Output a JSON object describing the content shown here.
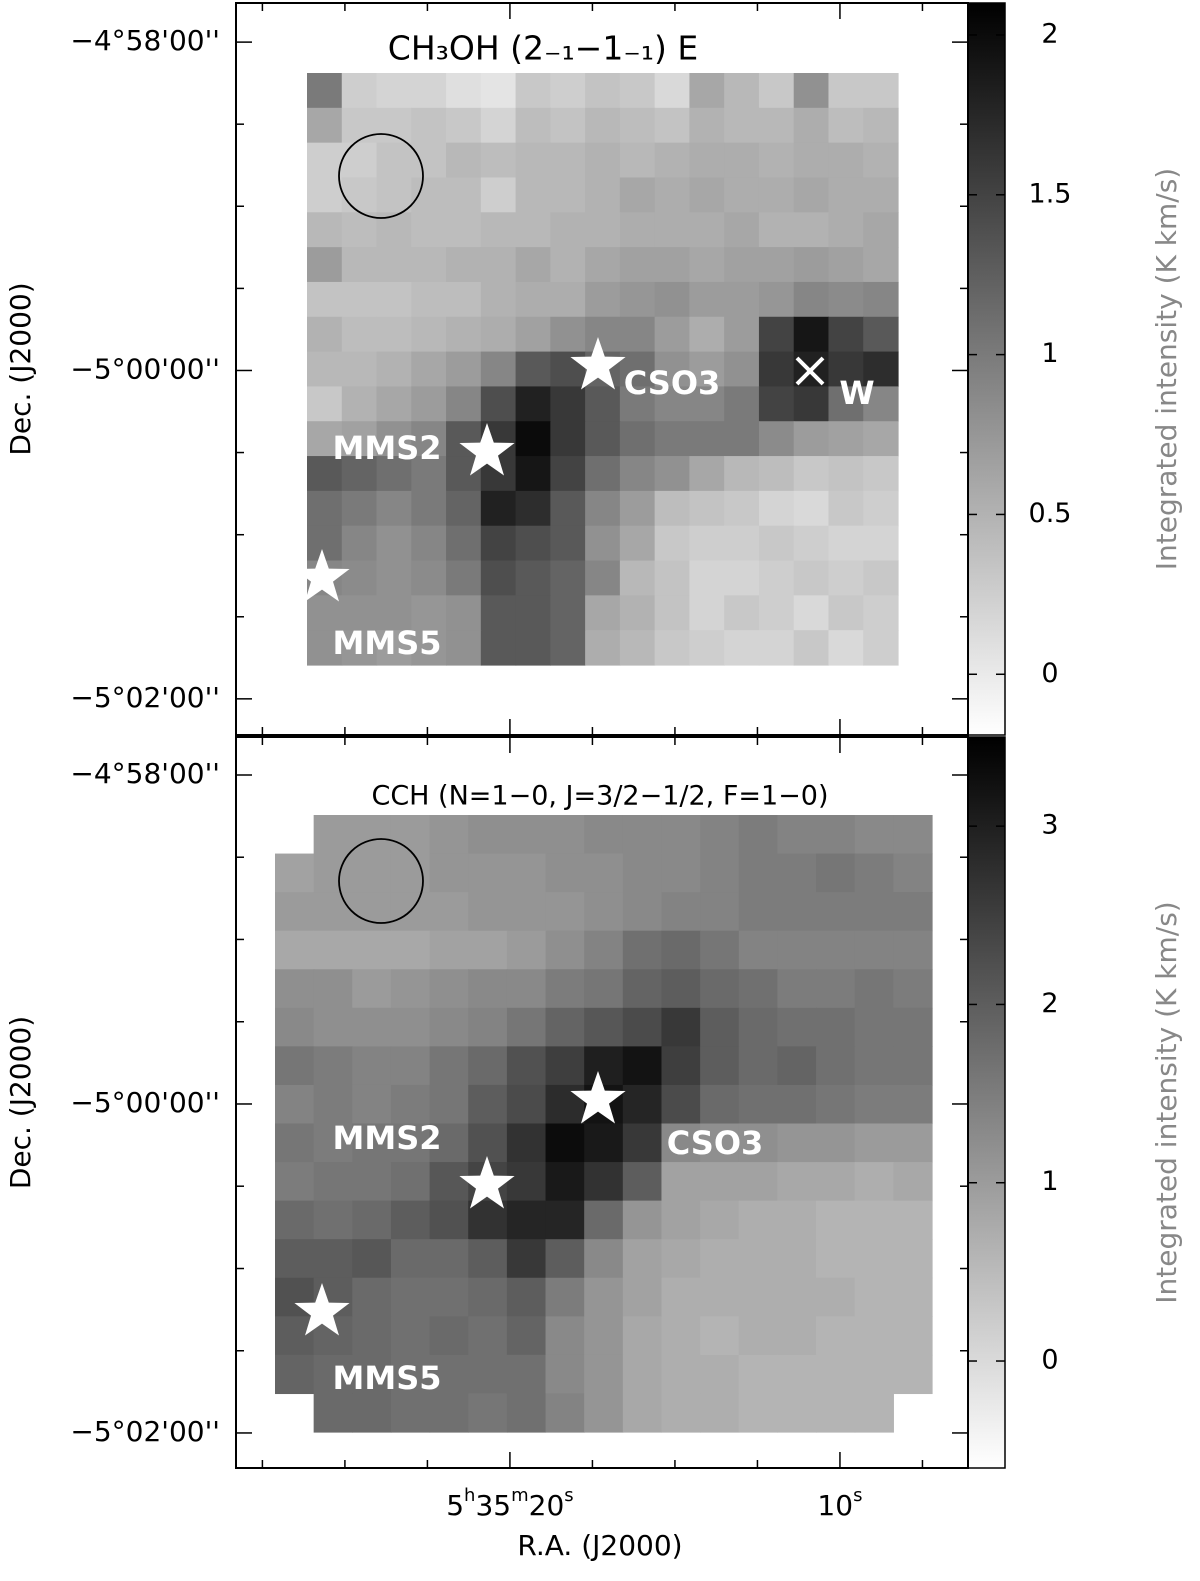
{
  "chart_data": [
    {
      "type": "heatmap",
      "title": "CH₃OH (2₋₁−1₋₁) E",
      "ylabel": "Dec. (J2000)",
      "colorbar_label": "Integrated intensity (K km/s)",
      "colormap": "gray_r",
      "clim": [
        -0.19,
        2.1
      ],
      "cticks": [
        0,
        0.5,
        1,
        1.5,
        2
      ],
      "ylim": [
        -4.9627,
        -5.037
      ],
      "yticks": [
        {
          "value": -4.96667,
          "label": "−4°58'00''"
        },
        {
          "value": -5.0,
          "label": "−5°00'00''"
        },
        {
          "value": -5.03333,
          "label": "−5°02'00''"
        }
      ],
      "yminor": [
        -4.975,
        -4.98333,
        -4.99167,
        -5.00833,
        -5.01667,
        -5.025
      ],
      "annotations": [
        "CSO3",
        "MMS2",
        "MMS5",
        "W"
      ],
      "values": [
        [
          1.0,
          0.25,
          0.2,
          0.2,
          0.1,
          0.05,
          0.3,
          0.25,
          0.35,
          0.3,
          0.15,
          0.6,
          0.45,
          0.3,
          0.8,
          0.3,
          0.3
        ],
        [
          0.6,
          0.3,
          0.3,
          0.35,
          0.3,
          0.2,
          0.4,
          0.35,
          0.45,
          0.4,
          0.35,
          0.5,
          0.45,
          0.45,
          0.55,
          0.4,
          0.45
        ],
        [
          0.25,
          0.25,
          0.35,
          0.35,
          0.45,
          0.4,
          0.45,
          0.45,
          0.5,
          0.45,
          0.5,
          0.55,
          0.55,
          0.5,
          0.55,
          0.55,
          0.5
        ],
        [
          0.25,
          0.3,
          0.35,
          0.4,
          0.4,
          0.25,
          0.45,
          0.45,
          0.5,
          0.6,
          0.55,
          0.6,
          0.55,
          0.55,
          0.6,
          0.55,
          0.55
        ],
        [
          0.45,
          0.4,
          0.45,
          0.4,
          0.4,
          0.45,
          0.45,
          0.5,
          0.5,
          0.55,
          0.55,
          0.55,
          0.6,
          0.5,
          0.5,
          0.55,
          0.6
        ],
        [
          0.7,
          0.45,
          0.45,
          0.45,
          0.5,
          0.5,
          0.6,
          0.5,
          0.6,
          0.65,
          0.65,
          0.6,
          0.65,
          0.65,
          0.7,
          0.65,
          0.6
        ],
        [
          0.35,
          0.35,
          0.35,
          0.4,
          0.4,
          0.5,
          0.55,
          0.55,
          0.7,
          0.75,
          0.8,
          0.7,
          0.7,
          0.75,
          0.9,
          0.85,
          0.9
        ],
        [
          0.5,
          0.4,
          0.4,
          0.45,
          0.5,
          0.55,
          0.65,
          0.8,
          0.9,
          0.9,
          0.7,
          0.55,
          0.7,
          1.5,
          1.9,
          1.5,
          1.3
        ],
        [
          0.45,
          0.45,
          0.5,
          0.6,
          0.7,
          0.9,
          1.3,
          1.4,
          1.2,
          1.1,
          0.8,
          0.7,
          0.8,
          1.6,
          1.8,
          1.6,
          1.7
        ],
        [
          0.3,
          0.5,
          0.6,
          0.7,
          0.9,
          1.4,
          1.8,
          1.6,
          1.3,
          1.0,
          0.9,
          0.9,
          1.0,
          1.5,
          1.6,
          1.1,
          0.9
        ],
        [
          0.6,
          0.65,
          0.8,
          0.9,
          1.3,
          1.6,
          2.0,
          1.6,
          1.3,
          1.1,
          1.0,
          1.0,
          1.0,
          0.85,
          0.7,
          0.65,
          0.6
        ],
        [
          1.3,
          1.2,
          1.1,
          1.0,
          1.3,
          1.6,
          1.9,
          1.5,
          1.1,
          0.9,
          0.8,
          0.6,
          0.45,
          0.4,
          0.3,
          0.35,
          0.3
        ],
        [
          1.1,
          1.0,
          0.9,
          1.0,
          1.2,
          1.8,
          1.7,
          1.3,
          0.9,
          0.7,
          0.4,
          0.35,
          0.3,
          0.2,
          0.15,
          0.3,
          0.25
        ],
        [
          1.1,
          0.9,
          0.8,
          0.9,
          1.1,
          1.5,
          1.4,
          1.3,
          0.8,
          0.6,
          0.3,
          0.25,
          0.25,
          0.3,
          0.25,
          0.2,
          0.2
        ],
        [
          0.9,
          0.85,
          0.8,
          0.85,
          1.0,
          1.4,
          1.3,
          1.2,
          0.9,
          0.45,
          0.35,
          0.2,
          0.2,
          0.25,
          0.3,
          0.25,
          0.3
        ],
        [
          0.8,
          0.8,
          0.8,
          0.75,
          0.8,
          1.3,
          1.3,
          1.2,
          0.6,
          0.5,
          0.35,
          0.2,
          0.3,
          0.25,
          0.15,
          0.3,
          0.25
        ],
        [
          0.8,
          0.75,
          0.7,
          0.75,
          0.8,
          1.3,
          1.3,
          1.2,
          0.55,
          0.45,
          0.3,
          0.25,
          0.2,
          0.2,
          0.3,
          0.15,
          0.25
        ]
      ]
    },
    {
      "type": "heatmap",
      "title": "CCH (N=1−0, J=3/2−1/2, F=1−0)",
      "ylabel": "Dec. (J2000)",
      "xlabel": "R.A. (J2000)",
      "colorbar_label": "Integrated intensity (K km/s)",
      "colormap": "gray_r",
      "clim": [
        -0.6,
        3.5
      ],
      "cticks": [
        0,
        1,
        2,
        3
      ],
      "ylim": [
        -4.96282,
        -5.03688
      ],
      "yticks": [
        {
          "value": -4.96667,
          "label": "−4°58'00''"
        },
        {
          "value": -5.0,
          "label": "−5°00'00''"
        },
        {
          "value": -5.03333,
          "label": "−5°02'00''"
        }
      ],
      "yminor": [
        -4.975,
        -4.98333,
        -4.99167,
        -5.00833,
        -5.01667,
        -5.025
      ],
      "xlim": [
        28.3,
        6.12
      ],
      "xticks": [
        {
          "value": 20,
          "label": "5h35m20s"
        },
        {
          "value": 10,
          "label": "10s"
        }
      ],
      "xminor": [
        27.5,
        25,
        22.5,
        17.5,
        15,
        12.5,
        7.5
      ],
      "annotations": [
        "CSO3",
        "MMS2",
        "MMS5"
      ],
      "values": [
        [
          null,
          1.0,
          1.0,
          1.0,
          1.1,
          1.2,
          1.2,
          1.2,
          1.3,
          1.3,
          1.3,
          1.4,
          1.5,
          1.4,
          1.4,
          1.3,
          1.3
        ],
        [
          0.9,
          1.0,
          1.0,
          1.0,
          1.1,
          1.1,
          1.1,
          1.2,
          1.2,
          1.3,
          1.3,
          1.4,
          1.5,
          1.5,
          1.6,
          1.5,
          1.4
        ],
        [
          1.0,
          1.0,
          1.0,
          1.0,
          1.0,
          1.1,
          1.1,
          1.1,
          1.2,
          1.3,
          1.4,
          1.4,
          1.5,
          1.5,
          1.5,
          1.5,
          1.5
        ],
        [
          0.8,
          0.8,
          0.8,
          0.8,
          0.9,
          0.9,
          1.0,
          1.2,
          1.4,
          1.7,
          1.8,
          1.6,
          1.4,
          1.4,
          1.4,
          1.4,
          1.4
        ],
        [
          1.2,
          1.2,
          1.0,
          1.1,
          1.2,
          1.3,
          1.3,
          1.5,
          1.6,
          1.9,
          2.0,
          1.8,
          1.7,
          1.5,
          1.5,
          1.6,
          1.5
        ],
        [
          1.3,
          1.2,
          1.2,
          1.2,
          1.3,
          1.4,
          1.6,
          1.9,
          2.1,
          2.3,
          2.6,
          2.0,
          1.8,
          1.7,
          1.7,
          1.6,
          1.6
        ],
        [
          1.6,
          1.5,
          1.4,
          1.4,
          1.6,
          1.8,
          2.2,
          2.5,
          3.0,
          3.2,
          2.5,
          2.0,
          1.8,
          1.9,
          1.7,
          1.6,
          1.6
        ],
        [
          1.4,
          1.5,
          1.4,
          1.5,
          1.6,
          2.0,
          2.3,
          2.8,
          3.2,
          2.9,
          2.3,
          1.8,
          1.7,
          1.7,
          1.6,
          1.5,
          1.5
        ],
        [
          1.6,
          1.5,
          1.6,
          1.6,
          1.8,
          2.2,
          2.7,
          3.3,
          3.1,
          2.6,
          1.3,
          1.2,
          1.2,
          1.1,
          1.1,
          1.0,
          1.0
        ],
        [
          1.5,
          1.6,
          1.6,
          1.7,
          2.1,
          2.4,
          2.6,
          3.1,
          2.7,
          2.0,
          0.9,
          0.9,
          0.9,
          0.8,
          0.8,
          0.7,
          0.8
        ],
        [
          1.8,
          1.7,
          1.8,
          2.0,
          2.2,
          2.7,
          2.9,
          2.9,
          1.8,
          1.1,
          0.9,
          0.8,
          0.7,
          0.7,
          0.6,
          0.6,
          0.6
        ],
        [
          2.0,
          2.0,
          2.1,
          1.8,
          1.8,
          2.0,
          2.6,
          2.0,
          1.3,
          0.9,
          0.8,
          0.7,
          0.7,
          0.7,
          0.6,
          0.6,
          0.6
        ],
        [
          2.2,
          2.0,
          1.8,
          1.7,
          1.7,
          1.8,
          2.0,
          1.5,
          1.1,
          0.9,
          0.7,
          0.7,
          0.7,
          0.7,
          0.7,
          0.6,
          0.6
        ],
        [
          2.0,
          1.9,
          1.8,
          1.7,
          1.8,
          1.7,
          1.9,
          1.3,
          1.1,
          0.8,
          0.7,
          0.6,
          0.7,
          0.7,
          0.6,
          0.6,
          0.6
        ],
        [
          1.9,
          1.8,
          1.8,
          1.7,
          1.7,
          1.7,
          1.7,
          1.3,
          1.1,
          0.8,
          0.7,
          0.7,
          0.6,
          0.6,
          0.6,
          0.6,
          0.6
        ],
        [
          null,
          1.8,
          1.8,
          1.7,
          1.7,
          1.6,
          1.7,
          1.4,
          1.1,
          0.8,
          0.7,
          0.7,
          0.6,
          0.6,
          0.6,
          0.6,
          null
        ]
      ]
    }
  ]
}
